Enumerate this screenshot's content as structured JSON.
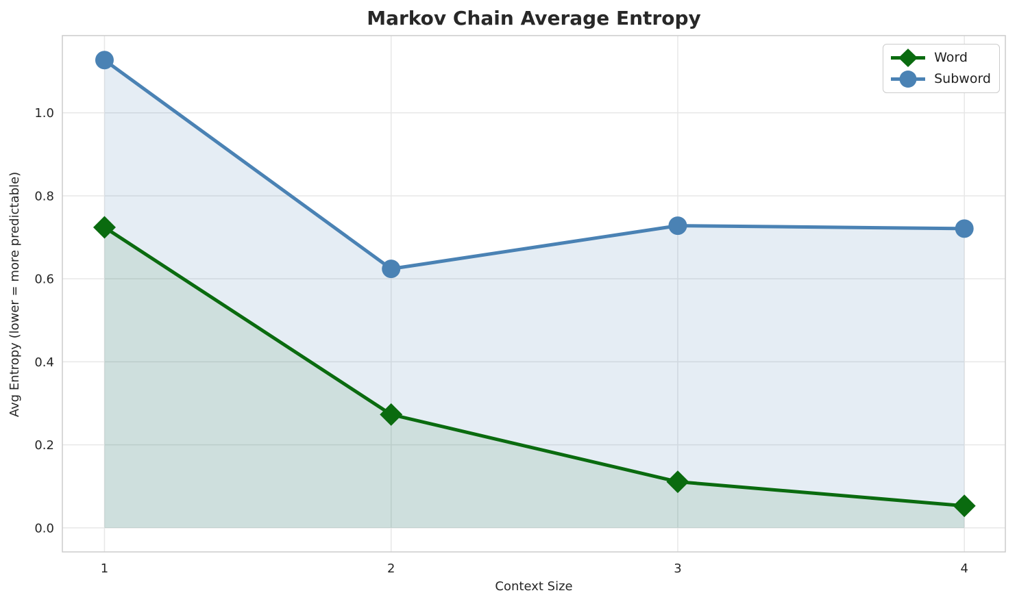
{
  "chart_data": {
    "type": "line",
    "title": "Markov Chain Average Entropy",
    "xlabel": "Context Size",
    "ylabel": "Avg Entropy (lower = more predictable)",
    "x": [
      1,
      2,
      3,
      4
    ],
    "x_tick_labels": [
      "1",
      "2",
      "3",
      "4"
    ],
    "y_ticks": [
      0.0,
      0.2,
      0.4,
      0.6,
      0.8,
      1.0
    ],
    "y_tick_labels": [
      "0.0",
      "0.2",
      "0.4",
      "0.6",
      "0.8",
      "1.0"
    ],
    "series": [
      {
        "name": "Word",
        "color": "#0a6b0f",
        "marker": "diamond",
        "fill_to_zero": true,
        "fill_opacity": 0.1,
        "values": [
          0.724,
          0.273,
          0.111,
          0.053
        ]
      },
      {
        "name": "Subword",
        "color": "#4a82b4",
        "marker": "circle",
        "fill_to_zero": true,
        "fill_opacity": 0.14,
        "values": [
          1.127,
          0.624,
          0.728,
          0.721
        ]
      }
    ],
    "xlim": [
      0.853,
      4.143
    ],
    "ylim": [
      -0.058,
      1.186
    ],
    "grid": true,
    "legend_position": "upper right",
    "colors": {
      "grid": "#e7e7e7",
      "spine": "#cccccc",
      "text": "#262626",
      "background": "#ffffff"
    }
  }
}
